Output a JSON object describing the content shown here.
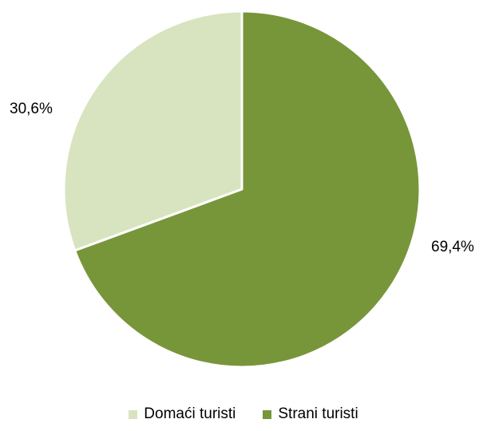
{
  "chart_data": {
    "type": "pie",
    "title": "",
    "start_angle_deg": 0,
    "direction": "clockwise",
    "slices": [
      {
        "name": "Strani turisti",
        "value": 69.4,
        "label": "69,4%",
        "color": "#77963a"
      },
      {
        "name": "Domaći turisti",
        "value": 30.6,
        "label": "30,6%",
        "color": "#d8e4bf"
      }
    ],
    "legend": {
      "position": "bottom",
      "order": [
        "Domaći turisti",
        "Strani turisti"
      ]
    },
    "slice_border_color": "#ffffff"
  }
}
